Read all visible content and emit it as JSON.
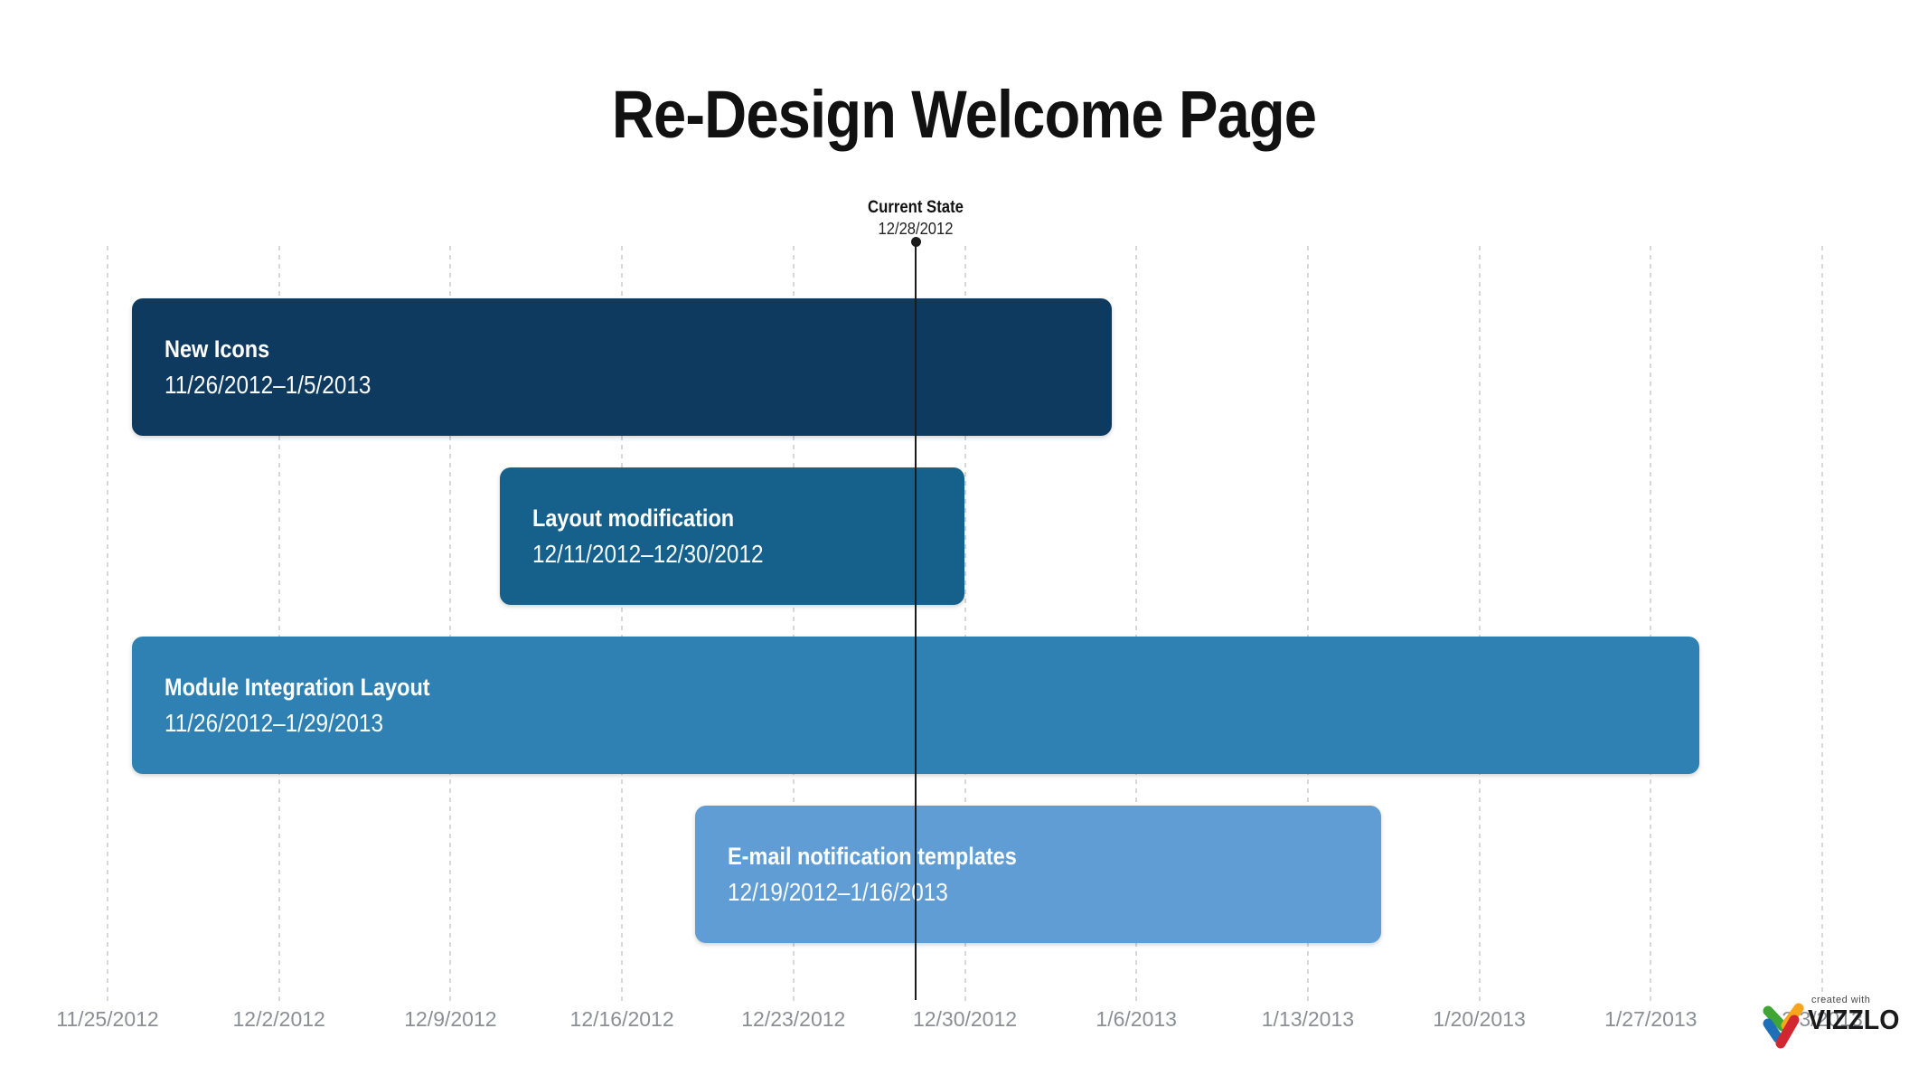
{
  "chart_data": {
    "type": "gantt",
    "title": "Re-Design Welcome Page",
    "x_axis": {
      "start": "11/25/2012",
      "end": "2/3/2013",
      "tick_interval": "weekly",
      "tick_labels": [
        "11/25/2012",
        "12/2/2012",
        "12/9/2012",
        "12/16/2012",
        "12/23/2012",
        "12/30/2012",
        "1/6/2013",
        "1/13/2013",
        "1/20/2013",
        "1/27/2013",
        "2/3/2013"
      ],
      "grid_style": "dashed",
      "grid_color": "#d6d8da",
      "label_color": "#8b8f95"
    },
    "marker": {
      "label": "Current State",
      "date": "12/28/2012",
      "color": "#1c1c1c"
    },
    "tasks": [
      {
        "name": "New Icons",
        "start": "11/26/2012",
        "end": "1/5/2013",
        "range_label": "11/26/2012–1/5/2013",
        "color": "#0e3a5f"
      },
      {
        "name": "Layout modification",
        "start": "12/11/2012",
        "end": "12/30/2012",
        "range_label": "12/11/2012–12/30/2012",
        "color": "#15618c"
      },
      {
        "name": "Module Integration Layout",
        "start": "11/26/2012",
        "end": "1/29/2013",
        "range_label": "11/26/2012–1/29/2013",
        "color": "#2e81b2"
      },
      {
        "name": "E-mail notification templates",
        "start": "12/19/2012",
        "end": "1/16/2013",
        "range_label": "12/19/2012–1/16/2013",
        "color": "#5f9dd4"
      }
    ],
    "bar_text_color": "#ffffff"
  },
  "branding": {
    "created_with": "created with",
    "name": "VIZZLO",
    "mark_colors": {
      "green": "#3fa535",
      "yellow": "#f8a51b",
      "blue": "#1d70b8",
      "red": "#d22730"
    }
  }
}
